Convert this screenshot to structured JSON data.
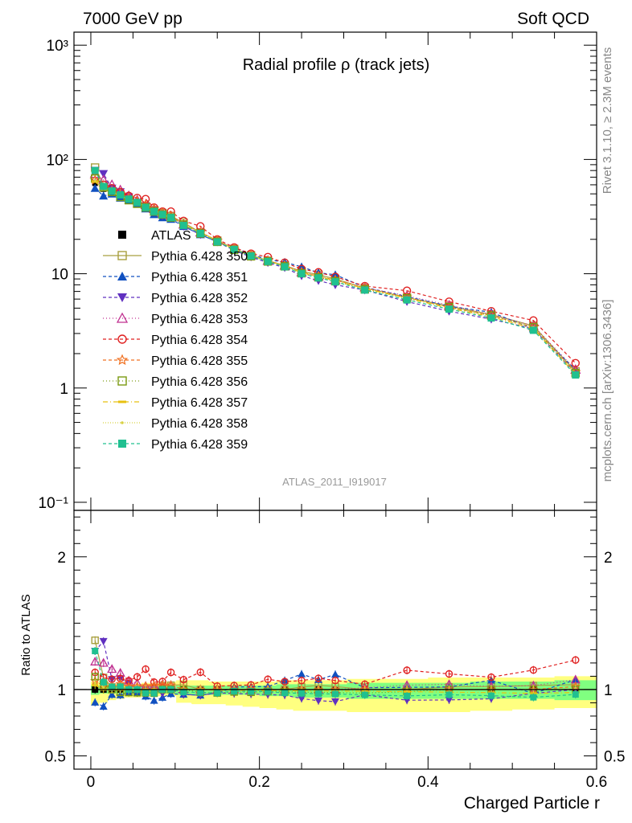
{
  "header": {
    "left": "7000 GeV pp",
    "right": "Soft QCD"
  },
  "side": {
    "rivet": "Rivet 3.1.10, ≥ 2.3M events",
    "mcplots": "mcplots.cern.ch [arXiv:1306.3436]"
  },
  "colors": {
    "band_yellow": "#ffff80",
    "band_green": "#80ff80"
  },
  "chart_data": [
    {
      "type": "line",
      "title": "Radial profile ρ (track jets)",
      "watermark": "ATLAS_2011_I919017",
      "yscale": "log",
      "ylim": [
        0.085,
        1300
      ],
      "xlim": [
        -0.02,
        0.6
      ],
      "ytick_labels": [
        "10⁻¹",
        "1",
        "10",
        "10²",
        "10³"
      ],
      "x": [
        0.005,
        0.015,
        0.025,
        0.035,
        0.045,
        0.055,
        0.065,
        0.075,
        0.085,
        0.095,
        0.11,
        0.13,
        0.15,
        0.17,
        0.19,
        0.21,
        0.23,
        0.25,
        0.27,
        0.29,
        0.325,
        0.375,
        0.425,
        0.475,
        0.525,
        0.575
      ],
      "series": [
        {
          "name": "ATLAS",
          "color": "#000000",
          "marker": "square-filled",
          "dash": "",
          "values": [
            62,
            55,
            52,
            48,
            45,
            42,
            39,
            36,
            33,
            31,
            27,
            23,
            19.5,
            16.5,
            14.5,
            13,
            11.8,
            10.3,
            9.5,
            8.8,
            7.5,
            6.2,
            5.1,
            4.3,
            3.4,
            1.35
          ]
        },
        {
          "name": "Pythia 6.428 350",
          "color": "#a8a040",
          "marker": "square-open",
          "dash": "",
          "values": [
            85,
            60,
            53,
            49,
            45,
            41,
            39,
            36,
            34,
            32,
            28,
            23,
            19.5,
            16.5,
            14.5,
            13,
            11.8,
            10.5,
            9.8,
            9.0,
            7.5,
            6.2,
            5.2,
            4.4,
            3.5,
            1.4
          ]
        },
        {
          "name": "Pythia 6.428 351",
          "color": "#1050c0",
          "marker": "tri-up-filled",
          "dash": "4,3",
          "values": [
            56,
            48,
            50,
            46,
            44,
            41,
            37,
            33,
            31,
            30,
            26,
            22,
            19,
            16.8,
            14.8,
            13.3,
            12.6,
            11.5,
            10.2,
            9.8,
            7.6,
            6.3,
            5.2,
            4.6,
            3.3,
            1.45
          ]
        },
        {
          "name": "Pythia 6.428 352",
          "color": "#6030c0",
          "marker": "tri-down-filled",
          "dash": "4,3",
          "values": [
            80,
            75,
            56,
            52,
            47,
            42,
            39,
            36,
            32,
            31,
            26,
            22,
            19,
            16,
            14,
            12.5,
            11.3,
            9.6,
            8.7,
            8.0,
            7.2,
            5.7,
            4.7,
            4.0,
            3.3,
            1.35
          ]
        },
        {
          "name": "Pythia 6.428 353",
          "color": "#c03090",
          "marker": "tri-up-open",
          "dash": "1,3",
          "values": [
            75,
            66,
            60,
            54,
            48,
            44,
            40,
            37,
            34,
            32,
            27,
            23,
            19.5,
            16.5,
            14.5,
            13,
            11.8,
            10.3,
            9.5,
            8.8,
            7.6,
            6.4,
            5.3,
            4.4,
            3.5,
            1.45
          ]
        },
        {
          "name": "Pythia 6.428 354",
          "color": "#e02020",
          "marker": "circle-open",
          "dash": "4,3",
          "values": [
            70,
            60,
            56,
            52,
            48,
            46,
            45,
            38,
            35,
            35,
            29,
            26,
            20,
            17,
            15,
            14,
            12.5,
            11,
            10.3,
            9.4,
            7.8,
            7.1,
            5.7,
            4.7,
            3.9,
            1.65
          ]
        },
        {
          "name": "Pythia 6.428 355",
          "color": "#f07020",
          "marker": "star-open",
          "dash": "4,3",
          "values": [
            66,
            57,
            53,
            50,
            46,
            43,
            40,
            37,
            34,
            32,
            27,
            23,
            19.5,
            16.5,
            14.5,
            13,
            11.8,
            10.3,
            9.5,
            8.8,
            7.5,
            6.2,
            5.1,
            4.3,
            3.4,
            1.38
          ]
        },
        {
          "name": "Pythia 6.428 356",
          "color": "#7a9a10",
          "marker": "square-open",
          "dash": "1,3",
          "values": [
            68,
            57,
            52,
            47,
            44,
            41,
            38,
            35,
            33,
            31,
            27,
            22.5,
            19,
            16.2,
            14.2,
            12.8,
            11.6,
            10.1,
            9.3,
            8.6,
            7.3,
            6.1,
            5.1,
            4.3,
            3.4,
            1.35
          ]
        },
        {
          "name": "Pythia 6.428 357",
          "color": "#e8c010",
          "marker": "dash-marker",
          "dash": "6,3,1,3",
          "values": [
            64,
            55,
            52,
            48,
            45,
            42,
            39,
            36,
            33,
            31,
            27,
            23,
            19.4,
            16.4,
            14.4,
            12.9,
            11.7,
            10.2,
            9.4,
            8.7,
            7.4,
            6.1,
            5.0,
            4.2,
            3.3,
            1.32
          ]
        },
        {
          "name": "Pythia 6.428 358",
          "color": "#d8d040",
          "marker": "dot",
          "dash": "1,2",
          "values": [
            65,
            56,
            52,
            48,
            45,
            42,
            39,
            36,
            33,
            31,
            27,
            23,
            19.5,
            16.5,
            14.5,
            13,
            11.8,
            10.3,
            9.5,
            8.8,
            7.5,
            6.2,
            5.1,
            4.3,
            3.4,
            1.36
          ]
        },
        {
          "name": "Pythia 6.428 359",
          "color": "#20c090",
          "marker": "square-filled",
          "dash": "4,3",
          "values": [
            80,
            58,
            53,
            49,
            45,
            42,
            38,
            35,
            33,
            31,
            26.5,
            22.5,
            19,
            16.3,
            14.3,
            12.8,
            11.5,
            10.0,
            9.2,
            8.5,
            7.2,
            5.9,
            4.9,
            4.1,
            3.2,
            1.3
          ]
        }
      ]
    },
    {
      "type": "line",
      "ylabel": "Ratio to ATLAS",
      "xlabel": "Charged Particle r",
      "ylim": [
        0.4,
        2.35
      ],
      "xlim": [
        -0.02,
        0.6
      ],
      "ytick_labels": [
        "0.5",
        "1",
        "2"
      ],
      "xtick_labels": [
        "0",
        "0.2",
        "0.4",
        "0.6"
      ],
      "band_note": "ATLAS uncertainty bands (yellow outer, green inner)",
      "band_yellow_lo": [
        0.88,
        0.9,
        0.92,
        0.93,
        0.94,
        0.94,
        0.95,
        0.95,
        0.95,
        0.95,
        0.9,
        0.89,
        0.89,
        0.88,
        0.87,
        0.86,
        0.85,
        0.84,
        0.84,
        0.84,
        0.83,
        0.83,
        0.83,
        0.84,
        0.85,
        0.86
      ],
      "band_yellow_hi": [
        1.06,
        1.05,
        1.04,
        1.04,
        1.04,
        1.04,
        1.05,
        1.05,
        1.05,
        1.06,
        1.07,
        1.07,
        1.06,
        1.06,
        1.06,
        1.06,
        1.07,
        1.07,
        1.07,
        1.07,
        1.08,
        1.08,
        1.09,
        1.09,
        1.09,
        1.1
      ],
      "band_green_lo": [
        0.96,
        0.97,
        0.97,
        0.97,
        0.97,
        0.97,
        0.97,
        0.97,
        0.97,
        0.97,
        0.96,
        0.96,
        0.96,
        0.96,
        0.96,
        0.95,
        0.95,
        0.94,
        0.94,
        0.94,
        0.93,
        0.93,
        0.93,
        0.93,
        0.93,
        0.92
      ],
      "band_green_hi": [
        1.03,
        1.02,
        1.02,
        1.02,
        1.02,
        1.02,
        1.02,
        1.02,
        1.02,
        1.02,
        1.03,
        1.03,
        1.03,
        1.03,
        1.03,
        1.03,
        1.04,
        1.04,
        1.04,
        1.04,
        1.05,
        1.05,
        1.05,
        1.06,
        1.06,
        1.07
      ]
    }
  ]
}
